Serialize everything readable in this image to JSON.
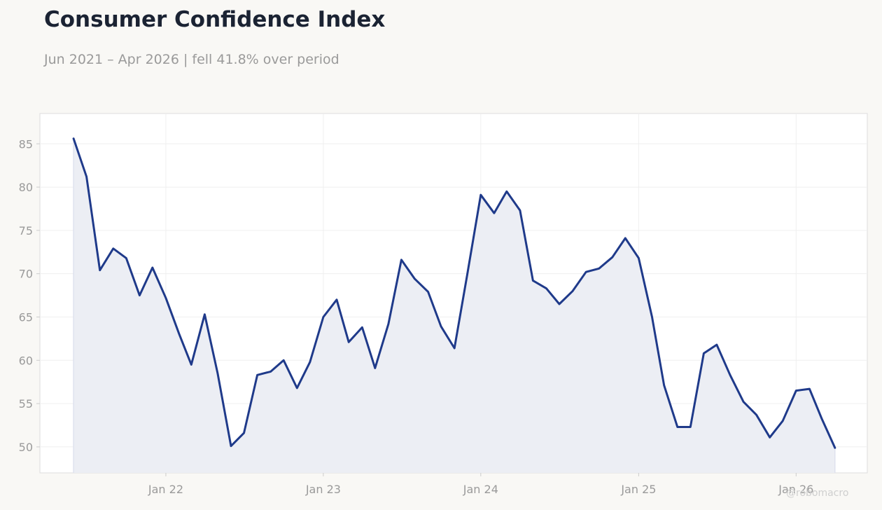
{
  "header": {
    "title": "Consumer Confidence Index",
    "subtitle": "Jun 2021 – Apr 2026 | fell 41.8% over period"
  },
  "watermark": "@robomacro",
  "colors": {
    "background": "#f9f8f5",
    "plot_background": "#ffffff",
    "line": "#1f3a8a",
    "area_fill": "#eceef4",
    "grid": "#efefef",
    "axis_text": "#9a9a9a",
    "title": "#1b2333"
  },
  "chart_data": {
    "type": "area",
    "title": "Consumer Confidence Index",
    "subtitle": "Jun 2021 – Apr 2026 | fell 41.8% over period",
    "xlabel": "",
    "ylabel": "",
    "ylim": [
      47,
      88.5
    ],
    "xlim": [
      "2021-03-15",
      "2026-06-15"
    ],
    "yticks": [
      50,
      55,
      60,
      65,
      70,
      75,
      80,
      85
    ],
    "xticks": [
      {
        "date": "2022-01-01",
        "label": "Jan 22"
      },
      {
        "date": "2023-01-01",
        "label": "Jan 23"
      },
      {
        "date": "2024-01-01",
        "label": "Jan 24"
      },
      {
        "date": "2025-01-01",
        "label": "Jan 25"
      },
      {
        "date": "2026-01-01",
        "label": "Jan 26"
      }
    ],
    "grid": true,
    "series": [
      {
        "points": [
          [
            "2021-06-01",
            85.6
          ],
          [
            "2021-07-01",
            81.2
          ],
          [
            "2021-08-01",
            70.4
          ],
          [
            "2021-09-01",
            72.9
          ],
          [
            "2021-10-01",
            71.8
          ],
          [
            "2021-11-01",
            67.5
          ],
          [
            "2021-12-01",
            70.7
          ],
          [
            "2022-01-01",
            67.2
          ],
          [
            "2022-02-01",
            63.0
          ],
          [
            "2022-03-01",
            59.5
          ],
          [
            "2022-04-01",
            65.3
          ],
          [
            "2022-05-01",
            58.5
          ],
          [
            "2022-06-01",
            50.1
          ],
          [
            "2022-07-01",
            51.6
          ],
          [
            "2022-08-01",
            58.3
          ],
          [
            "2022-09-01",
            58.7
          ],
          [
            "2022-10-01",
            60.0
          ],
          [
            "2022-11-01",
            56.8
          ],
          [
            "2022-12-01",
            59.8
          ],
          [
            "2023-01-01",
            65.0
          ],
          [
            "2023-02-01",
            67.0
          ],
          [
            "2023-03-01",
            62.1
          ],
          [
            "2023-04-01",
            63.8
          ],
          [
            "2023-05-01",
            59.1
          ],
          [
            "2023-06-01",
            64.2
          ],
          [
            "2023-07-01",
            71.6
          ],
          [
            "2023-08-01",
            69.4
          ],
          [
            "2023-09-01",
            67.9
          ],
          [
            "2023-10-01",
            63.9
          ],
          [
            "2023-11-01",
            61.4
          ],
          [
            "2023-12-01",
            70.0
          ],
          [
            "2024-01-01",
            79.1
          ],
          [
            "2024-02-01",
            77.0
          ],
          [
            "2024-03-01",
            79.5
          ],
          [
            "2024-04-01",
            77.3
          ],
          [
            "2024-05-01",
            69.2
          ],
          [
            "2024-06-01",
            68.3
          ],
          [
            "2024-07-01",
            66.5
          ],
          [
            "2024-08-01",
            68.0
          ],
          [
            "2024-09-01",
            70.2
          ],
          [
            "2024-10-01",
            70.6
          ],
          [
            "2024-11-01",
            71.9
          ],
          [
            "2024-12-01",
            74.1
          ],
          [
            "2025-01-01",
            71.8
          ],
          [
            "2025-02-01",
            65.0
          ],
          [
            "2025-03-01",
            57.1
          ],
          [
            "2025-04-01",
            52.3
          ],
          [
            "2025-05-01",
            52.3
          ],
          [
            "2025-06-01",
            60.8
          ],
          [
            "2025-07-01",
            61.8
          ],
          [
            "2025-08-01",
            58.3
          ],
          [
            "2025-09-01",
            55.2
          ],
          [
            "2025-10-01",
            53.7
          ],
          [
            "2025-11-01",
            51.1
          ],
          [
            "2025-12-01",
            53.0
          ],
          [
            "2026-01-01",
            56.5
          ],
          [
            "2026-02-01",
            56.7
          ],
          [
            "2026-03-01",
            53.3
          ],
          [
            "2026-04-01",
            49.9
          ]
        ]
      }
    ]
  }
}
